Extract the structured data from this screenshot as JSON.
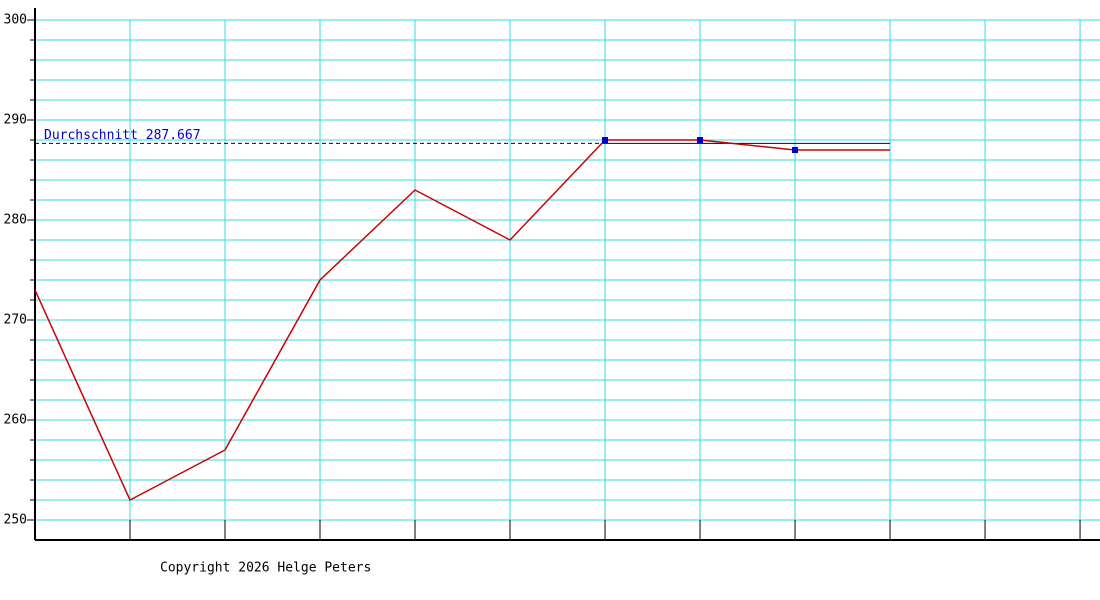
{
  "chart_data": {
    "type": "line",
    "x": [
      0,
      1,
      2,
      3,
      4,
      5,
      6,
      7,
      8,
      9
    ],
    "series": [
      {
        "color": "#cc0000",
        "values": [
          273,
          252,
          257,
          274,
          283,
          278,
          288,
          288,
          287,
          287
        ]
      }
    ],
    "marker_indices": [
      6,
      7,
      8
    ],
    "marker_color": "#0000cc",
    "xlim": [
      0,
      11.21
    ],
    "xticks": [
      0,
      1,
      2,
      3,
      4,
      5,
      6,
      7,
      8,
      9,
      10,
      11
    ],
    "ylim": [
      248,
      301.2
    ],
    "yticks": [
      250,
      260,
      270,
      280,
      290,
      300
    ],
    "minor_yticks": [
      250,
      252,
      254,
      256,
      258,
      260,
      262,
      264,
      266,
      268,
      270,
      272,
      274,
      276,
      278,
      280,
      282,
      284,
      286,
      288,
      290,
      292,
      294,
      296,
      298,
      300
    ],
    "grid": true,
    "grid_color": "#33dddd",
    "average": 287.667,
    "average_label": "Durchschnitt 287.667",
    "average_split_index": 6,
    "footer": "Copyright 2026 Helge Peters"
  }
}
